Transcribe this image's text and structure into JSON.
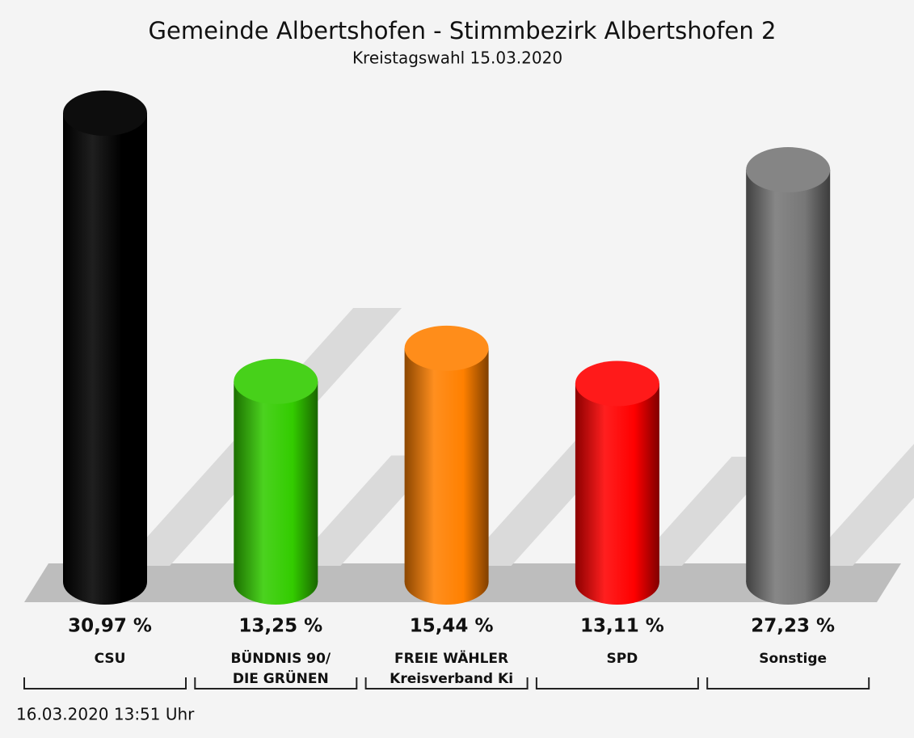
{
  "chart_data": {
    "type": "bar",
    "title": "Gemeinde Albertshofen - Stimmbezirk Albertshofen 2",
    "subtitle": "Kreistagswahl 15.03.2020",
    "categories": [
      "CSU",
      "BÜNDNIS 90/\nDIE GRÜNEN",
      "FREIE WÄHLER\nKreisverband Ki",
      "SPD",
      "Sonstige"
    ],
    "values": [
      30.97,
      13.25,
      15.44,
      13.11,
      27.23
    ],
    "value_labels": [
      "30,97 %",
      "13,25 %",
      "15,44 %",
      "13,11 %",
      "27,23 %"
    ],
    "colors": [
      "#000000",
      "#33cc00",
      "#ff8000",
      "#ff0000",
      "#777777"
    ],
    "footer": "16.03.2020 13:51 Uhr"
  }
}
